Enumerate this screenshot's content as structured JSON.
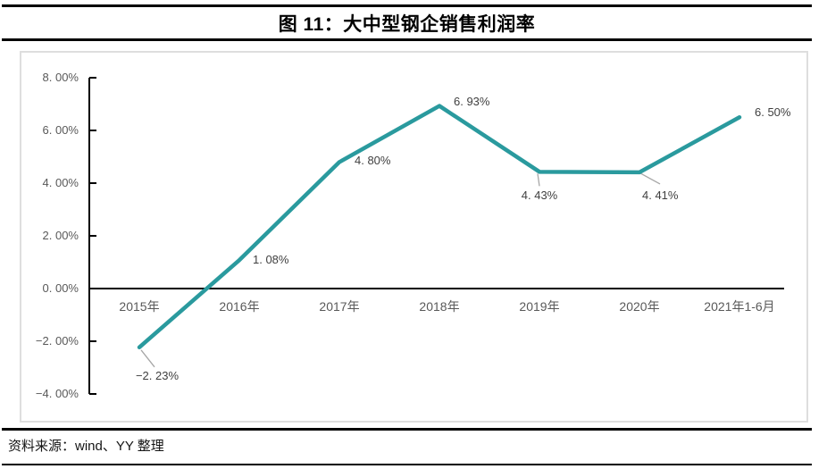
{
  "figure": {
    "title": "图 11：大中型钢企销售利润率",
    "source": "资料来源：wind、YY 整理"
  },
  "chart_data": {
    "type": "line",
    "title": "图 11：大中型钢企销售利润率",
    "categories": [
      "2015年",
      "2016年",
      "2017年",
      "2018年",
      "2019年",
      "2020年",
      "2021年1-6月"
    ],
    "values": [
      -2.23,
      1.08,
      4.8,
      6.93,
      4.43,
      4.41,
      6.5
    ],
    "point_labels": [
      "−2. 23%",
      "1. 08%",
      "4. 80%",
      "6. 93%",
      "4. 43%",
      "4. 41%",
      "6. 50%"
    ],
    "y_ticks": [
      8,
      6,
      4,
      2,
      0,
      -2,
      -4
    ],
    "y_tick_labels": [
      "8. 00%",
      "6. 00%",
      "4. 00%",
      "2. 00%",
      "0. 00%",
      "−2. 00%",
      "−4. 00%"
    ],
    "ylim": [
      -4,
      8
    ],
    "xlabel": "",
    "ylabel": "",
    "grid": false,
    "legend": "none",
    "line_color": "#2a9a9e",
    "axis_color": "#000000",
    "leader_line_color": "#a6a6a6",
    "tick_label_color": "#595959",
    "data_label_color": "#3f3f3f",
    "frame_border_color": "#dedede"
  }
}
